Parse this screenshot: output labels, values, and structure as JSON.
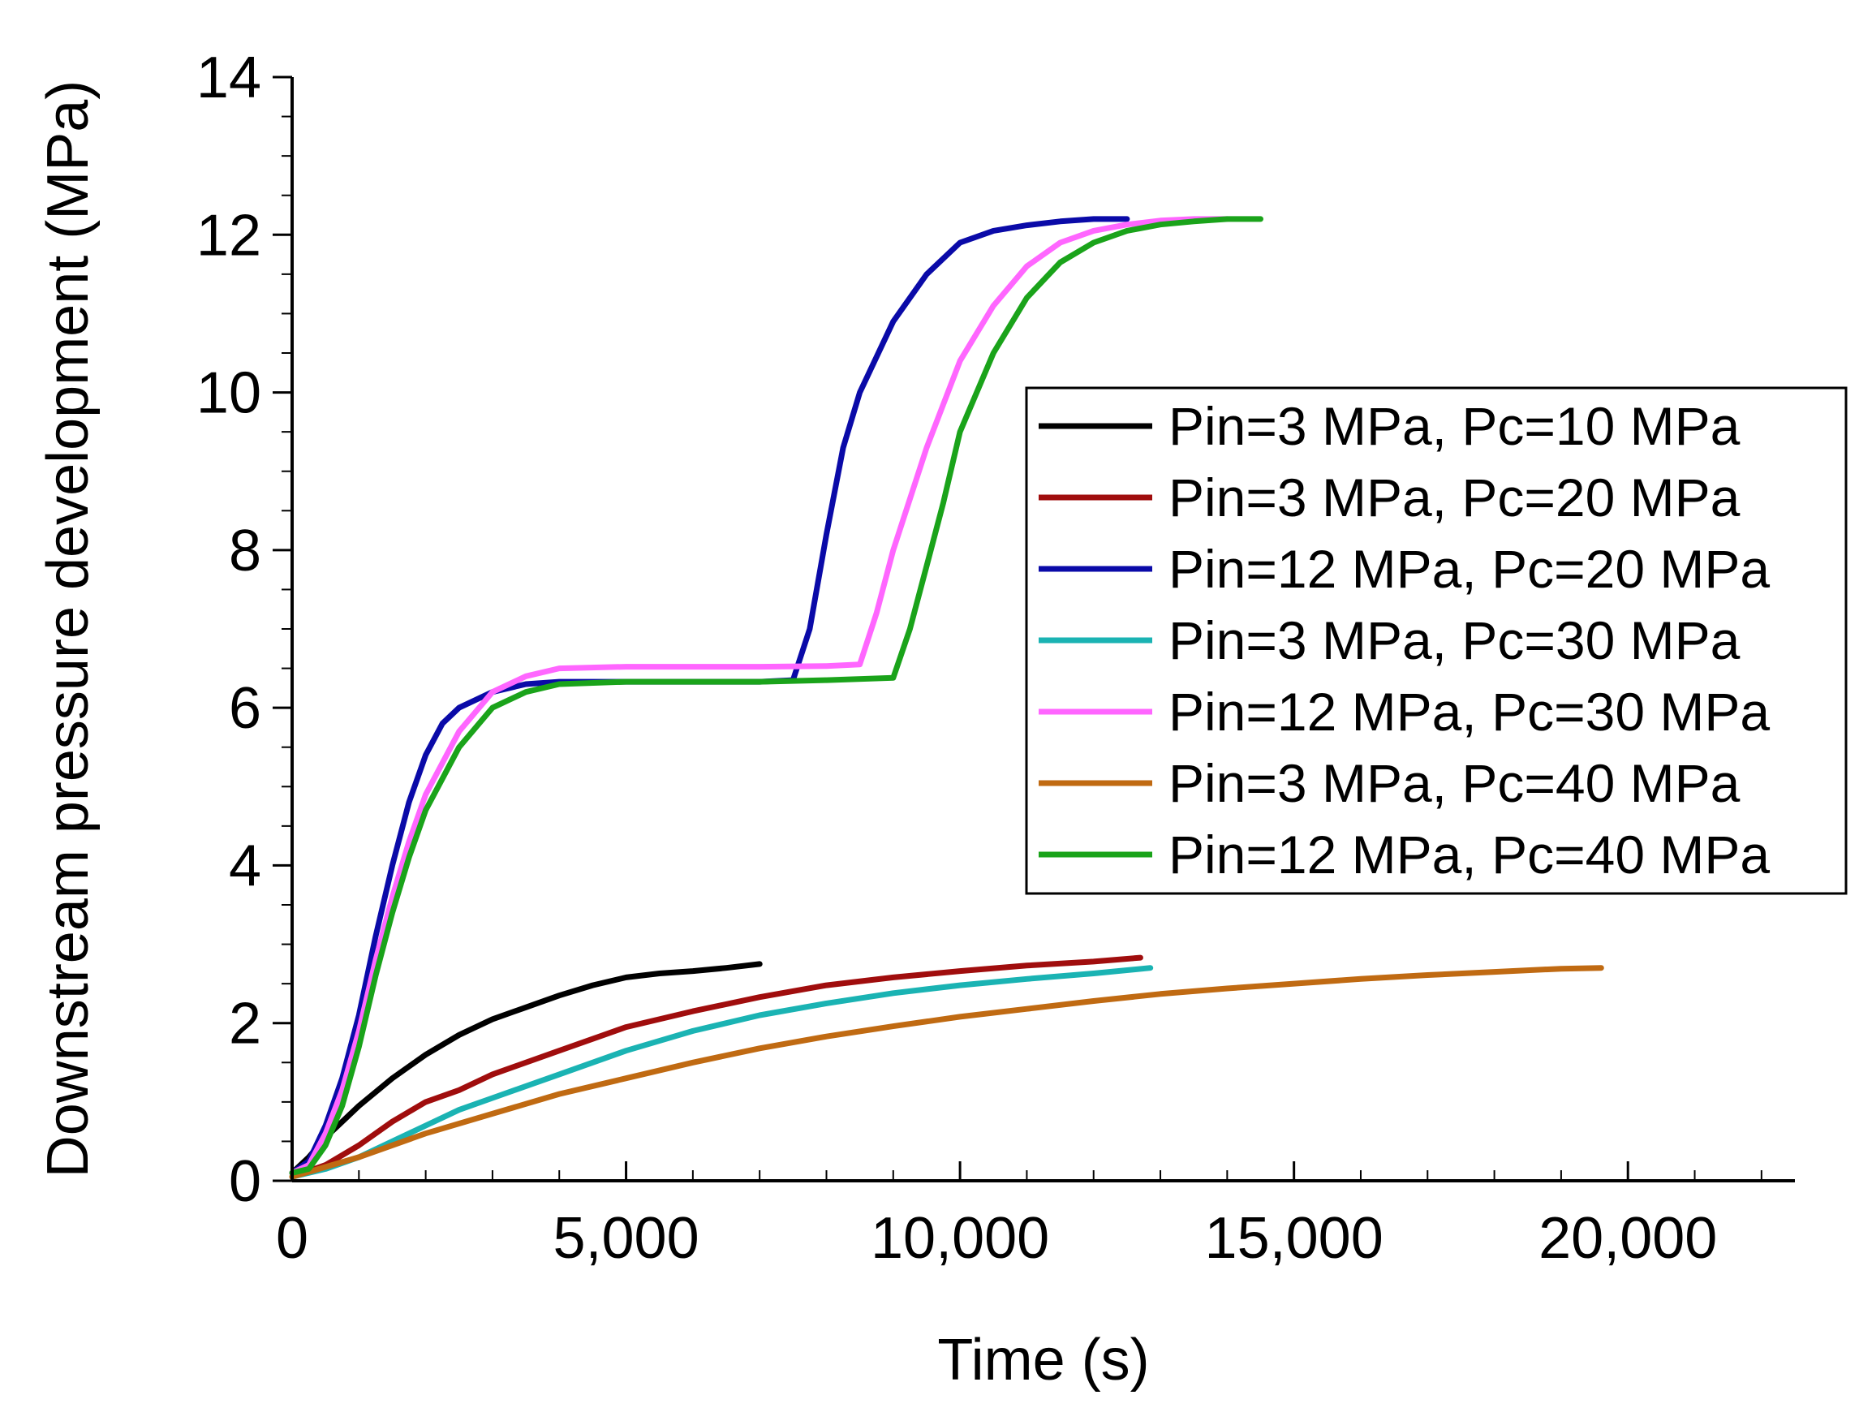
{
  "chart_data": {
    "type": "line",
    "title": "",
    "xlabel": "Time (s)",
    "ylabel": "Downstream pressure development (MPa)",
    "xlim": [
      0,
      22500
    ],
    "ylim": [
      0,
      14
    ],
    "x_ticks": [
      0,
      5000,
      10000,
      15000,
      20000
    ],
    "x_tick_labels": [
      "0",
      "5,000",
      "10,000",
      "15,000",
      "20,000"
    ],
    "y_ticks": [
      0,
      2,
      4,
      6,
      8,
      10,
      12,
      14
    ],
    "y_tick_labels": [
      "0",
      "2",
      "4",
      "6",
      "8",
      "10",
      "12",
      "14"
    ],
    "grid": false,
    "legend_position": "right",
    "series": [
      {
        "name": "Pin=3 MPa, Pc=10 MPa",
        "color": "#000000",
        "x": [
          0,
          250,
          500,
          1000,
          1500,
          2000,
          2500,
          3000,
          3500,
          4000,
          4500,
          5000,
          5500,
          6000,
          6500,
          7000
        ],
        "y": [
          0.1,
          0.3,
          0.55,
          0.95,
          1.3,
          1.6,
          1.85,
          2.05,
          2.2,
          2.35,
          2.48,
          2.58,
          2.63,
          2.66,
          2.7,
          2.75
        ]
      },
      {
        "name": "Pin=3 MPa, Pc=20 MPa",
        "color": "#a00d0d",
        "x": [
          0,
          500,
          1000,
          1500,
          2000,
          2500,
          3000,
          4000,
          5000,
          6000,
          7000,
          8000,
          9000,
          10000,
          11000,
          12000,
          12700
        ],
        "y": [
          0.05,
          0.2,
          0.45,
          0.75,
          1.0,
          1.15,
          1.35,
          1.65,
          1.95,
          2.15,
          2.33,
          2.48,
          2.58,
          2.66,
          2.73,
          2.78,
          2.83
        ]
      },
      {
        "name": "Pin=12 MPa, Pc=20 MPa",
        "color": "#0a0aa8",
        "x": [
          0,
          250,
          500,
          750,
          1000,
          1250,
          1500,
          1750,
          2000,
          2250,
          2500,
          3000,
          3500,
          4000,
          5000,
          6000,
          7000,
          7500,
          7750,
          8000,
          8250,
          8500,
          9000,
          9500,
          10000,
          10500,
          11000,
          11500,
          12000,
          12500
        ],
        "y": [
          0.1,
          0.25,
          0.7,
          1.3,
          2.1,
          3.1,
          4.0,
          4.8,
          5.4,
          5.8,
          6.0,
          6.2,
          6.3,
          6.33,
          6.33,
          6.33,
          6.33,
          6.35,
          7.0,
          8.2,
          9.3,
          10.0,
          10.9,
          11.5,
          11.9,
          12.05,
          12.12,
          12.17,
          12.2,
          12.2
        ]
      },
      {
        "name": "Pin=3 MPa, Pc=30 MPa",
        "color": "#1ab3b3",
        "x": [
          0,
          500,
          1000,
          1500,
          2000,
          2500,
          3000,
          4000,
          5000,
          6000,
          7000,
          8000,
          9000,
          10000,
          11000,
          12000,
          12850
        ],
        "y": [
          0.05,
          0.15,
          0.3,
          0.5,
          0.7,
          0.9,
          1.05,
          1.35,
          1.65,
          1.9,
          2.1,
          2.25,
          2.38,
          2.48,
          2.56,
          2.63,
          2.7
        ]
      },
      {
        "name": "Pin=12 MPa, Pc=30 MPa",
        "color": "#ff66ff",
        "x": [
          0,
          250,
          500,
          750,
          1000,
          1250,
          1500,
          1750,
          2000,
          2500,
          3000,
          3500,
          4000,
          5000,
          6000,
          7000,
          8000,
          8500,
          8750,
          9000,
          9500,
          10000,
          10500,
          11000,
          11500,
          12000,
          12500,
          13000,
          13500,
          14000
        ],
        "y": [
          0.1,
          0.2,
          0.6,
          1.15,
          1.9,
          2.8,
          3.6,
          4.3,
          4.9,
          5.7,
          6.2,
          6.4,
          6.5,
          6.52,
          6.52,
          6.52,
          6.53,
          6.55,
          7.2,
          8.0,
          9.3,
          10.4,
          11.1,
          11.6,
          11.9,
          12.05,
          12.13,
          12.18,
          12.2,
          12.2
        ]
      },
      {
        "name": "Pin=3 MPa, Pc=40 MPa",
        "color": "#c06a12",
        "x": [
          0,
          1000,
          2000,
          3000,
          4000,
          5000,
          6000,
          7000,
          8000,
          9000,
          10000,
          11000,
          12000,
          13000,
          14000,
          15000,
          16000,
          17000,
          18000,
          19000,
          19600
        ],
        "y": [
          0.05,
          0.3,
          0.6,
          0.85,
          1.1,
          1.3,
          1.5,
          1.68,
          1.83,
          1.96,
          2.08,
          2.18,
          2.28,
          2.37,
          2.44,
          2.5,
          2.56,
          2.61,
          2.65,
          2.69,
          2.7
        ]
      },
      {
        "name": "Pin=12 MPa, Pc=40 MPa",
        "color": "#1aa31a",
        "x": [
          0,
          250,
          500,
          750,
          1000,
          1250,
          1500,
          1750,
          2000,
          2500,
          3000,
          3500,
          4000,
          5000,
          6000,
          7000,
          8000,
          9000,
          9250,
          9500,
          9750,
          10000,
          10500,
          11000,
          11500,
          12000,
          12500,
          13000,
          13500,
          14000,
          14500
        ],
        "y": [
          0.1,
          0.15,
          0.45,
          0.95,
          1.7,
          2.6,
          3.4,
          4.1,
          4.7,
          5.5,
          6.0,
          6.2,
          6.3,
          6.33,
          6.33,
          6.33,
          6.35,
          6.38,
          7.0,
          7.8,
          8.6,
          9.5,
          10.5,
          11.2,
          11.65,
          11.9,
          12.05,
          12.13,
          12.17,
          12.2,
          12.2
        ]
      }
    ]
  }
}
